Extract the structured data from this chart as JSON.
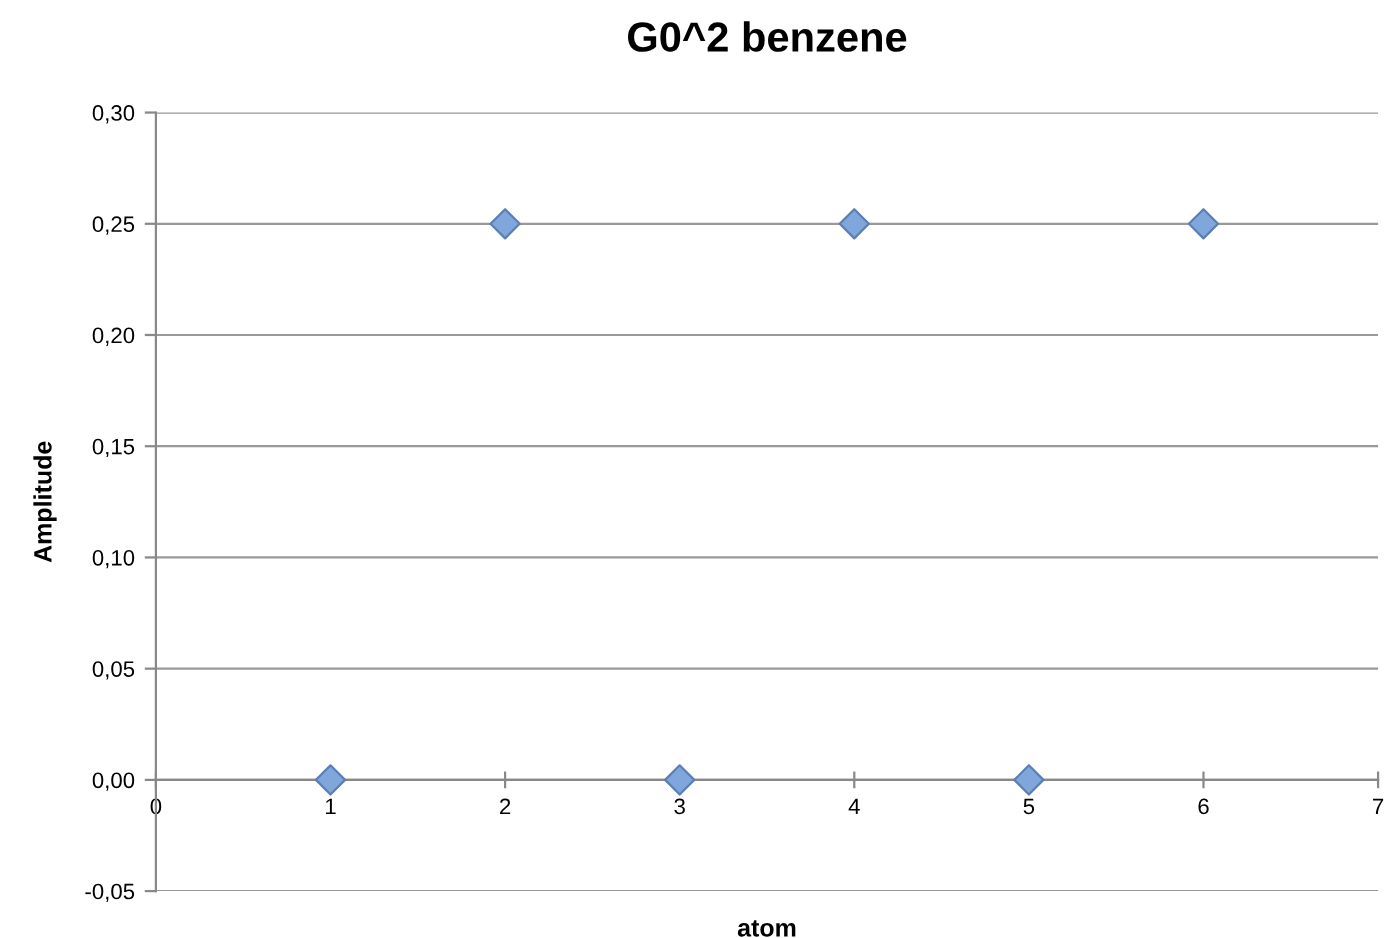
{
  "chart_data": {
    "type": "scatter",
    "title": "G0^2 benzene",
    "xlabel": "atom",
    "ylabel": "Amplitude",
    "x": [
      1,
      2,
      3,
      4,
      5,
      6
    ],
    "series": [
      {
        "color": "#7fa7dc",
        "values": [
          0,
          0.25,
          0,
          0.25,
          0,
          0.25
        ]
      }
    ],
    "xlim": [
      0,
      7
    ],
    "xticks": [
      0,
      1,
      2,
      3,
      4,
      5,
      6,
      7
    ],
    "ylim": [
      -0.05,
      0.3
    ],
    "yticks": [
      {
        "value": -0.05,
        "label": "-0,05"
      },
      {
        "value": 0,
        "label": "0,00"
      },
      {
        "value": 0.05,
        "label": "0,05"
      },
      {
        "value": 0.1,
        "label": "0,10"
      },
      {
        "value": 0.15,
        "label": "0,15"
      },
      {
        "value": 0.2,
        "label": "0,20"
      },
      {
        "value": 0.25,
        "label": "0,25"
      },
      {
        "value": 0.3,
        "label": "0,30"
      }
    ],
    "grid": "y",
    "marker": "diamond"
  }
}
